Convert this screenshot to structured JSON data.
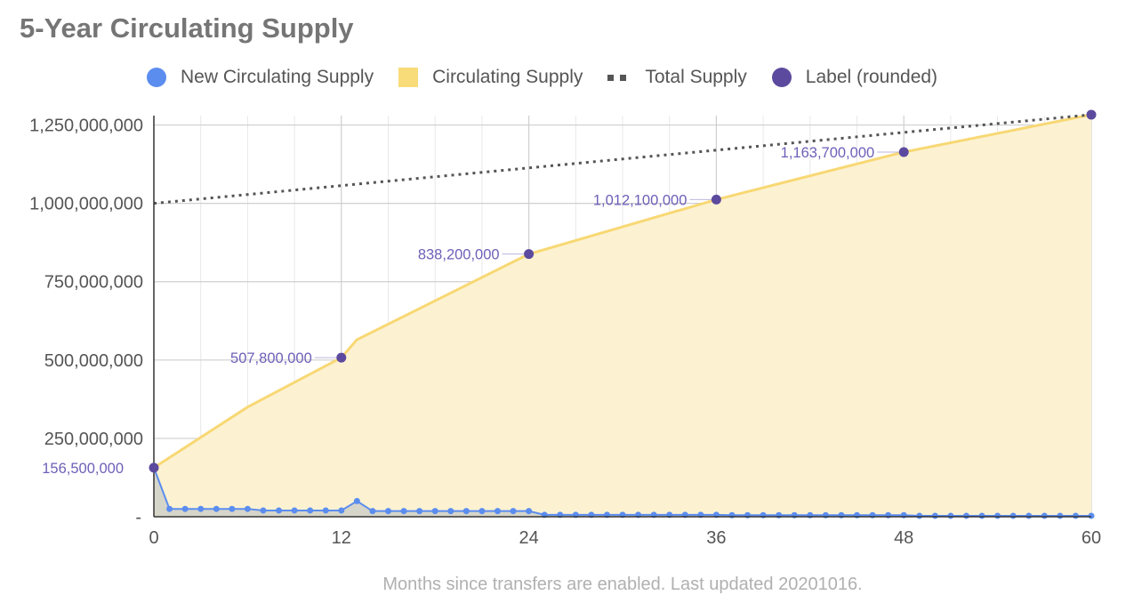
{
  "chart_data": {
    "type": "area",
    "title": "5-Year Circulating Supply",
    "xlabel": "Months since transfers are enabled. Last updated 20201016.",
    "ylabel": "",
    "xlim": [
      0,
      60
    ],
    "ylim": [
      0,
      1280000000
    ],
    "x_ticks": [
      "0",
      "12",
      "24",
      "36",
      "48",
      "60"
    ],
    "y_ticks": [
      {
        "value": 0,
        "label": "-"
      },
      {
        "value": 250000000,
        "label": "250,000,000"
      },
      {
        "value": 500000000,
        "label": "500,000,000"
      },
      {
        "value": 750000000,
        "label": "750,000,000"
      },
      {
        "value": 1000000000,
        "label": "1,000,000,000"
      },
      {
        "value": 1250000000,
        "label": "1,250,000,000"
      }
    ],
    "grid": true,
    "legend_position": "top",
    "legend": [
      {
        "name": "New Circulating Supply",
        "symbol": "circle",
        "color": "#5b8def"
      },
      {
        "name": "Circulating Supply",
        "symbol": "square",
        "color": "#f8dc7a"
      },
      {
        "name": "Total Supply",
        "symbol": "dots",
        "color": "#555555"
      },
      {
        "name": "Label (rounded)",
        "symbol": "circle",
        "color": "#5c4a9e"
      }
    ],
    "series": [
      {
        "name": "Circulating Supply",
        "type": "area",
        "color": "#f8d874",
        "fill": "#fcf2d2",
        "x": [
          0,
          6,
          12,
          13,
          24,
          36,
          48,
          60
        ],
        "values": [
          156500000,
          350000000,
          507800000,
          565000000,
          838200000,
          1012100000,
          1163700000,
          1283000000
        ]
      },
      {
        "name": "Total Supply",
        "type": "dotted-line",
        "color": "#555555",
        "x": [
          0,
          60
        ],
        "values": [
          1000000000,
          1283000000
        ]
      },
      {
        "name": "New Circulating Supply",
        "type": "line-markers",
        "color": "#5b8def",
        "x": [
          0,
          1,
          2,
          3,
          4,
          5,
          6,
          7,
          8,
          9,
          10,
          11,
          12,
          13,
          14,
          15,
          16,
          17,
          18,
          19,
          20,
          21,
          22,
          23,
          24,
          25,
          26,
          27,
          28,
          29,
          30,
          31,
          32,
          33,
          34,
          35,
          36,
          37,
          38,
          39,
          40,
          41,
          42,
          43,
          44,
          45,
          46,
          47,
          48,
          49,
          50,
          51,
          52,
          53,
          54,
          55,
          56,
          57,
          58,
          59,
          60
        ],
        "values": [
          156500000,
          25000000,
          25000000,
          25000000,
          25000000,
          25000000,
          25000000,
          20000000,
          20000000,
          20000000,
          20000000,
          20000000,
          20000000,
          50000000,
          18000000,
          18000000,
          18000000,
          18000000,
          18000000,
          18000000,
          18000000,
          18000000,
          18000000,
          18000000,
          18000000,
          6000000,
          6000000,
          6000000,
          6000000,
          6000000,
          6000000,
          6000000,
          6000000,
          6000000,
          6000000,
          6000000,
          6000000,
          5000000,
          5000000,
          5000000,
          5000000,
          5000000,
          5000000,
          5000000,
          5000000,
          5000000,
          5000000,
          5000000,
          5000000,
          3000000,
          3000000,
          3000000,
          3000000,
          3000000,
          3000000,
          3000000,
          3000000,
          3000000,
          3000000,
          3000000,
          3000000
        ]
      },
      {
        "name": "Label (rounded)",
        "type": "labeled-points",
        "color": "#5c4a9e",
        "x": [
          0,
          12,
          24,
          36,
          48,
          60
        ],
        "values": [
          156500000,
          507800000,
          838200000,
          1012100000,
          1163700000,
          1283000000
        ],
        "labels": [
          "156,500,000",
          "507,800,000",
          "838,200,000",
          "1,012,100,000",
          "1,163,700,000",
          ""
        ]
      }
    ]
  }
}
